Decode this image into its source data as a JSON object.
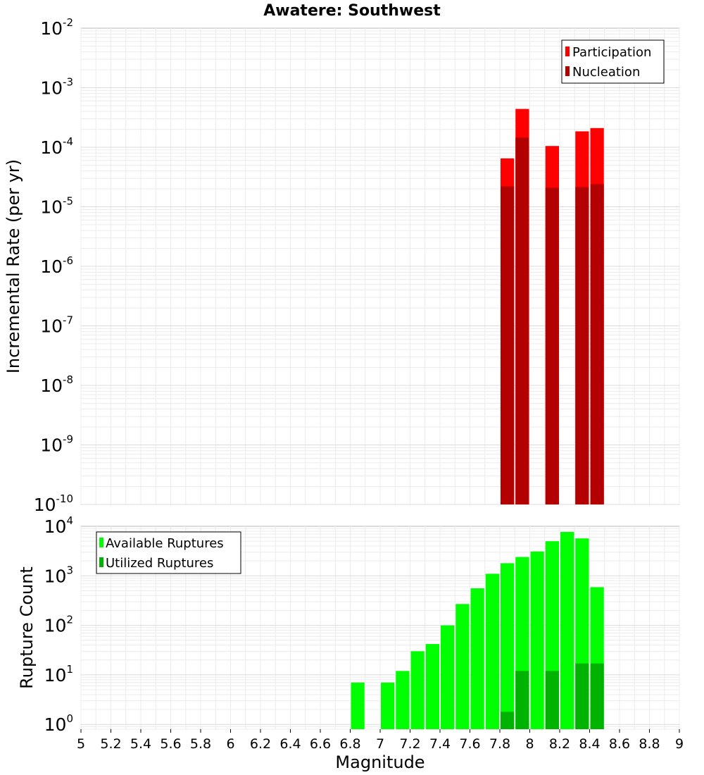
{
  "chart_data": [
    {
      "type": "bar",
      "title": "Awatere: Southwest",
      "xlabel": "",
      "ylabel": "Incremental Rate (per yr)",
      "xlim": [
        5,
        9
      ],
      "ylim": [
        1e-10,
        0.01
      ],
      "yscale": "log",
      "grid": true,
      "legend": "top-right",
      "bin_width": 0.1,
      "series": [
        {
          "name": "Participation",
          "color": "#ff0000",
          "x": [
            7.85,
            7.95,
            8.15,
            8.35,
            8.45
          ],
          "values": [
            6.5e-05,
            0.00044,
            0.000105,
            0.000185,
            0.00021
          ]
        },
        {
          "name": "Nucleation",
          "color": "#b30000",
          "x": [
            7.85,
            7.95,
            8.15,
            8.35,
            8.45
          ],
          "values": [
            2.2e-05,
            0.000145,
            2.1e-05,
            2.15e-05,
            2.4e-05
          ]
        }
      ]
    },
    {
      "type": "bar",
      "title": "",
      "xlabel": "Magnitude",
      "ylabel": "Rupture Count",
      "xlim": [
        5,
        9
      ],
      "ylim": [
        0.8,
        10000
      ],
      "yscale": "log",
      "grid": true,
      "legend": "top-left",
      "bin_width": 0.1,
      "x_ticks": [
        "5",
        "5.2",
        "5.4",
        "5.6",
        "5.8",
        "6",
        "6.2",
        "6.4",
        "6.6",
        "6.8",
        "7",
        "7.2",
        "7.4",
        "7.6",
        "7.8",
        "8",
        "8.2",
        "8.4",
        "8.6",
        "8.8",
        "9"
      ],
      "series": [
        {
          "name": "Available Ruptures",
          "color": "#00ff00",
          "x": [
            6.85,
            7.05,
            7.15,
            7.25,
            7.35,
            7.45,
            7.55,
            7.65,
            7.75,
            7.85,
            7.95,
            8.05,
            8.15,
            8.25,
            8.35,
            8.45
          ],
          "values": [
            7,
            7,
            12,
            30,
            42,
            100,
            270,
            560,
            1100,
            1800,
            2400,
            3100,
            5000,
            7700,
            5700,
            590
          ]
        },
        {
          "name": "Utilized Ruptures",
          "color": "#00b300",
          "x": [
            7.85,
            7.95,
            8.15,
            8.35,
            8.45
          ],
          "values": [
            1.8,
            12,
            12,
            17,
            17
          ]
        }
      ]
    }
  ]
}
